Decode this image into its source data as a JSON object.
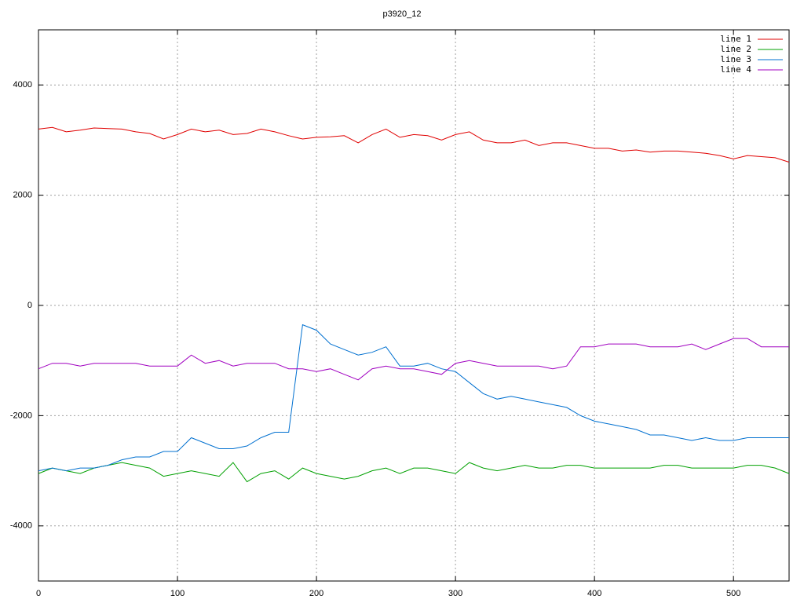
{
  "chart_data": {
    "type": "line",
    "title": "p3920_12",
    "x": [
      0,
      10,
      20,
      30,
      40,
      50,
      60,
      70,
      80,
      90,
      100,
      110,
      120,
      130,
      140,
      150,
      160,
      170,
      180,
      190,
      200,
      210,
      220,
      230,
      240,
      250,
      260,
      270,
      280,
      290,
      300,
      310,
      320,
      330,
      340,
      350,
      360,
      370,
      380,
      390,
      400,
      410,
      420,
      430,
      440,
      450,
      460,
      470,
      480,
      490,
      500,
      510,
      520,
      530,
      540
    ],
    "series": [
      {
        "name": "line 1",
        "color": "#e00000",
        "values": [
          3200,
          3230,
          3150,
          3180,
          3220,
          3210,
          3200,
          3150,
          3120,
          3020,
          3100,
          3200,
          3150,
          3180,
          3100,
          3120,
          3200,
          3150,
          3080,
          3020,
          3050,
          3060,
          3080,
          2950,
          3100,
          3200,
          3050,
          3100,
          3080,
          3000,
          3100,
          3150,
          3000,
          2950,
          2950,
          3000,
          2900,
          2950,
          2950,
          2900,
          2850,
          2850,
          2800,
          2820,
          2780,
          2800,
          2800,
          2780,
          2760,
          2720,
          2660,
          2720,
          2700,
          2680,
          2600
        ]
      },
      {
        "name": "line 2",
        "color": "#00a000",
        "values": [
          -3050,
          -2950,
          -3000,
          -3050,
          -2950,
          -2900,
          -2850,
          -2900,
          -2950,
          -3100,
          -3050,
          -3000,
          -3050,
          -3100,
          -2850,
          -3200,
          -3050,
          -3000,
          -3150,
          -2950,
          -3050,
          -3100,
          -3150,
          -3100,
          -3000,
          -2950,
          -3050,
          -2950,
          -2950,
          -3000,
          -3050,
          -2850,
          -2950,
          -3000,
          -2950,
          -2900,
          -2950,
          -2950,
          -2900,
          -2900,
          -2950,
          -2950,
          -2950,
          -2950,
          -2950,
          -2900,
          -2900,
          -2950,
          -2950,
          -2950,
          -2950,
          -2900,
          -2900,
          -2950,
          -3050
        ]
      },
      {
        "name": "line 3",
        "color": "#0070d0",
        "values": [
          -3000,
          -2950,
          -3000,
          -2950,
          -2950,
          -2900,
          -2800,
          -2750,
          -2750,
          -2650,
          -2650,
          -2400,
          -2500,
          -2600,
          -2600,
          -2550,
          -2400,
          -2300,
          -2300,
          -350,
          -450,
          -700,
          -800,
          -900,
          -850,
          -750,
          -1100,
          -1100,
          -1050,
          -1150,
          -1200,
          -1400,
          -1600,
          -1700,
          -1650,
          -1700,
          -1750,
          -1800,
          -1850,
          -2000,
          -2100,
          -2150,
          -2200,
          -2250,
          -2350,
          -2350,
          -2400,
          -2450,
          -2400,
          -2450,
          -2450,
          -2400,
          -2400,
          -2400,
          -2400
        ]
      },
      {
        "name": "line 4",
        "color": "#a000c0",
        "values": [
          -1150,
          -1050,
          -1050,
          -1100,
          -1050,
          -1050,
          -1050,
          -1050,
          -1100,
          -1100,
          -1100,
          -900,
          -1050,
          -1000,
          -1100,
          -1050,
          -1050,
          -1050,
          -1150,
          -1150,
          -1200,
          -1150,
          -1250,
          -1350,
          -1150,
          -1100,
          -1150,
          -1150,
          -1200,
          -1250,
          -1050,
          -1000,
          -1050,
          -1100,
          -1100,
          -1100,
          -1100,
          -1150,
          -1100,
          -750,
          -750,
          -700,
          -700,
          -700,
          -750,
          -750,
          -750,
          -700,
          -800,
          -700,
          -600,
          -600,
          -750,
          -750,
          -750
        ]
      }
    ],
    "xlim": [
      0,
      540
    ],
    "xticks": [
      0,
      100,
      200,
      300,
      400,
      500
    ],
    "ylim": [
      -5000,
      5000
    ],
    "yticks": [
      -4000,
      -2000,
      0,
      2000,
      4000
    ],
    "grid": true,
    "legend": "top-right"
  }
}
